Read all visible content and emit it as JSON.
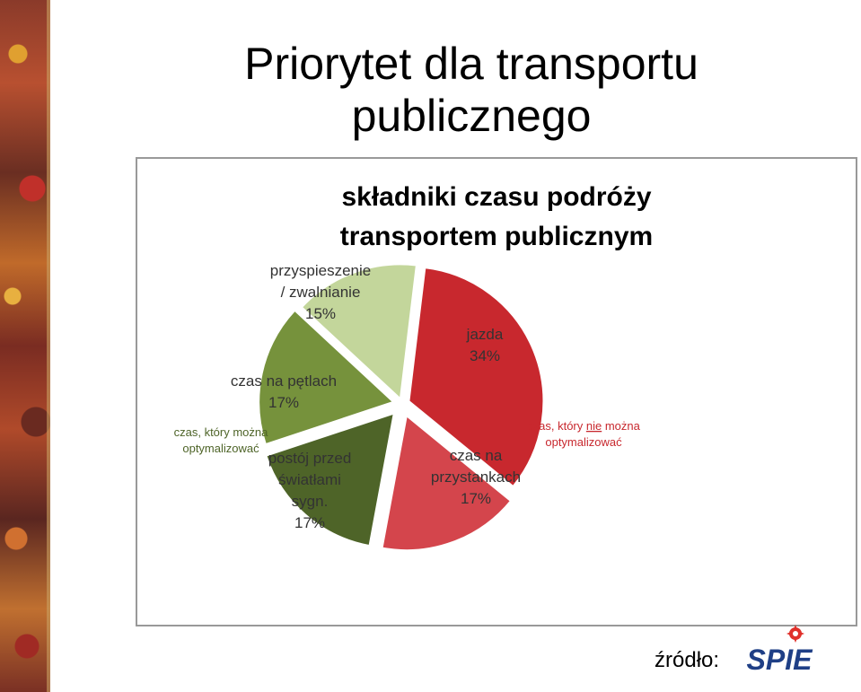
{
  "page": {
    "title_line1": "Priorytet dla transportu",
    "title_line2": "publicznego",
    "source_label": "źródło:",
    "logo_text": "SPIE"
  },
  "chart_data": {
    "type": "pie",
    "title_line1": "składniki czasu podróży",
    "title_line2": "transportem publicznym",
    "slices": [
      {
        "name": "jazda",
        "value": 34,
        "label_lines": [
          "jazda",
          "34%"
        ],
        "color": "#c8282e"
      },
      {
        "name": "czas na przystankach",
        "value": 17,
        "label_lines": [
          "czas na",
          "przystankach",
          "17%"
        ],
        "color": "#d4454c"
      },
      {
        "name": "postój przed światłami sygn.",
        "value": 17,
        "label_lines": [
          "postój przed",
          "światłami",
          "sygn.",
          "17%"
        ],
        "color": "#4e6428"
      },
      {
        "name": "czas na pętlach",
        "value": 17,
        "label_lines": [
          "czas na pętlach",
          "17%"
        ],
        "color": "#76923c"
      },
      {
        "name": "przyspieszenie / zwalnianie",
        "value": 15,
        "label_lines": [
          "przyspieszenie",
          "/ zwalnianie",
          "15%"
        ],
        "color": "#c3d69b"
      }
    ],
    "group_labels": [
      {
        "side": "right",
        "lines": [
          "czas, który nie można",
          "optymalizować"
        ],
        "underline_word": "nie",
        "color": "#c8282e"
      },
      {
        "side": "left",
        "lines": [
          "czas, który można",
          "optymalizować"
        ],
        "color": "#4e6428"
      }
    ]
  }
}
